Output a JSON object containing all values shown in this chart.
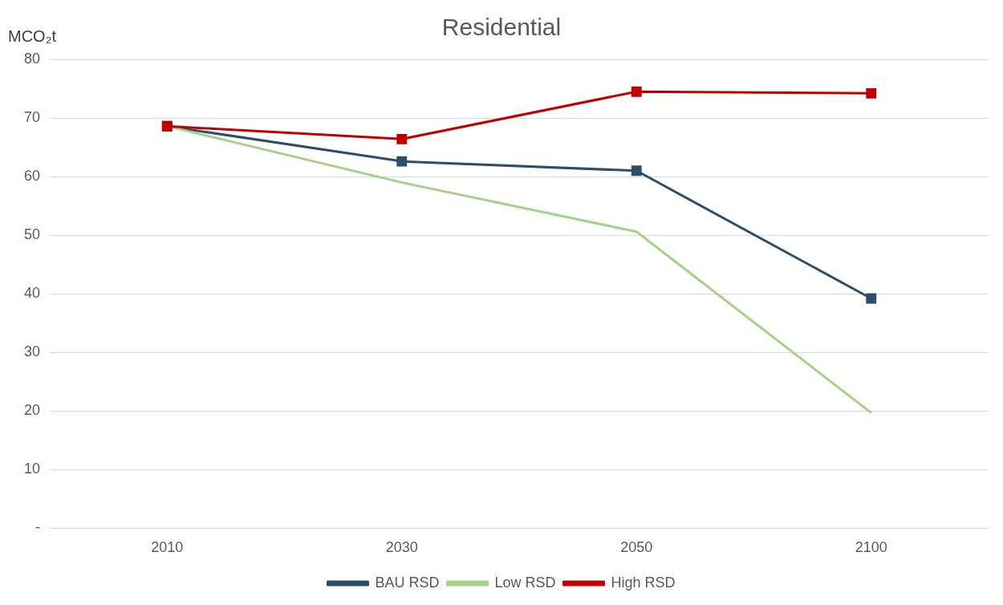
{
  "chart_data": {
    "type": "line",
    "title": "Residential",
    "ylabel": "MCO₂t",
    "categories": [
      "2010",
      "2030",
      "2050",
      "2100"
    ],
    "series": [
      {
        "name": "BAU RSD",
        "color": "#2e4d6b",
        "values": [
          68.6,
          62.6,
          61.0,
          39.2
        ],
        "marker": "square"
      },
      {
        "name": "Low RSD",
        "color": "#a6d18a",
        "values": [
          68.6,
          59.0,
          50.6,
          19.7
        ],
        "marker": "none"
      },
      {
        "name": "High RSD",
        "color": "#c00000",
        "values": [
          68.6,
          66.4,
          74.5,
          74.2
        ],
        "marker": "square"
      }
    ],
    "ylim": [
      0,
      80
    ],
    "yticks": [
      {
        "value": 0,
        "label": "-"
      },
      10,
      20,
      30,
      40,
      50,
      60,
      70,
      80
    ],
    "grid": "y",
    "legend": "bottom"
  }
}
